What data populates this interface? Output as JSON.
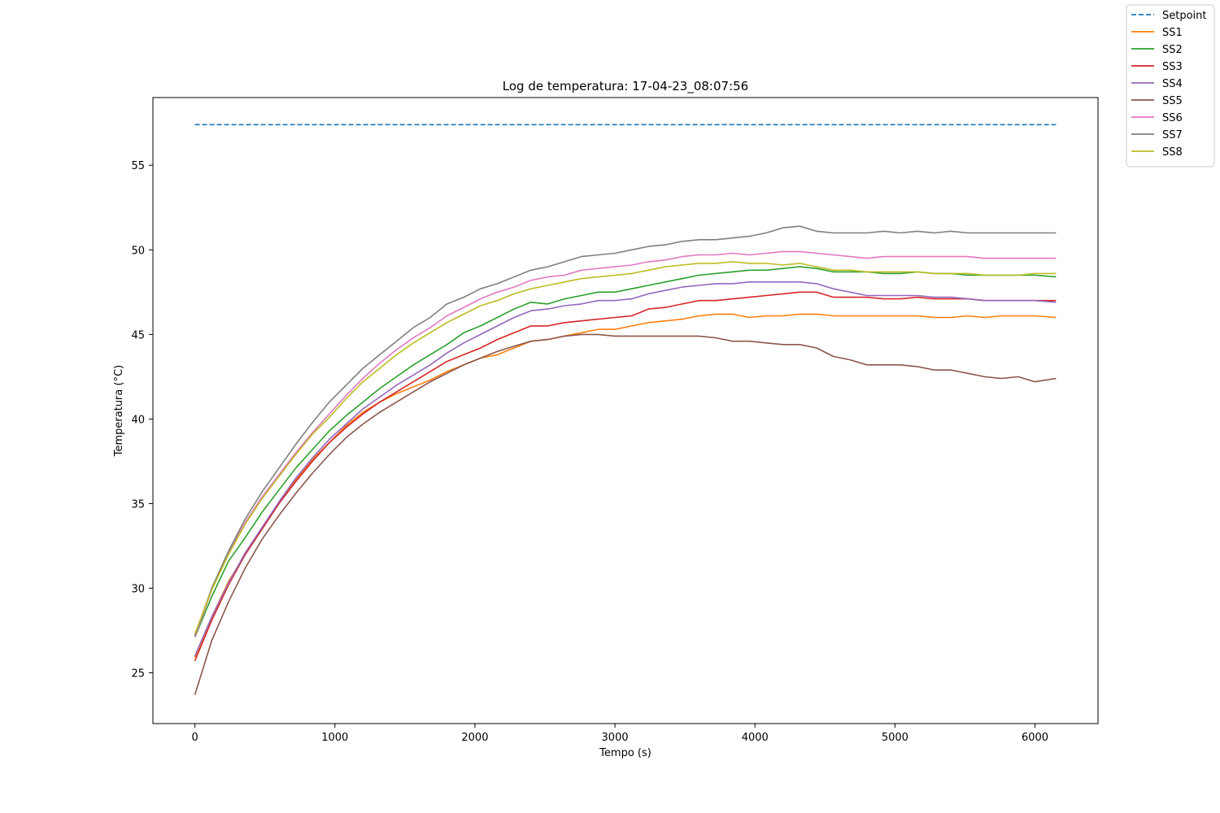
{
  "chart_data": {
    "type": "line",
    "title": "Log de temperatura: 17-04-23_08:07:56",
    "xlabel": "Tempo (s)",
    "ylabel": "Temperatura (°C)",
    "xlim": [
      -300,
      6450
    ],
    "ylim": [
      22,
      59
    ],
    "xticks": [
      0,
      1000,
      2000,
      3000,
      4000,
      5000,
      6000
    ],
    "yticks": [
      25,
      30,
      35,
      40,
      45,
      50,
      55
    ],
    "grid": false,
    "legend_position": "top-right",
    "x": [
      0,
      120,
      240,
      360,
      480,
      600,
      720,
      840,
      960,
      1080,
      1200,
      1320,
      1440,
      1560,
      1680,
      1800,
      1920,
      2040,
      2160,
      2280,
      2400,
      2520,
      2640,
      2760,
      2880,
      3000,
      3120,
      3240,
      3360,
      3480,
      3600,
      3720,
      3840,
      3960,
      4080,
      4200,
      4320,
      4440,
      4560,
      4680,
      4800,
      4920,
      5040,
      5160,
      5280,
      5400,
      5520,
      5640,
      5760,
      5880,
      6000,
      6150
    ],
    "series": [
      {
        "name": "Setpoint",
        "color": "#1f77b4",
        "dashed": true,
        "values": [
          57.4,
          57.4,
          57.4,
          57.4,
          57.4,
          57.4,
          57.4,
          57.4,
          57.4,
          57.4,
          57.4,
          57.4,
          57.4,
          57.4,
          57.4,
          57.4,
          57.4,
          57.4,
          57.4,
          57.4,
          57.4,
          57.4,
          57.4,
          57.4,
          57.4,
          57.4,
          57.4,
          57.4,
          57.4,
          57.4,
          57.4,
          57.4,
          57.4,
          57.4,
          57.4,
          57.4,
          57.4,
          57.4,
          57.4,
          57.4,
          57.4,
          57.4,
          57.4,
          57.4,
          57.4,
          57.4,
          57.4,
          57.4,
          57.4,
          57.4,
          57.4,
          57.4
        ]
      },
      {
        "name": "SS1",
        "color": "#ff7f0e",
        "values": [
          25.9,
          28.3,
          30.4,
          32.0,
          33.5,
          35.0,
          36.4,
          37.6,
          38.6,
          39.6,
          40.4,
          41.0,
          41.5,
          41.9,
          42.3,
          42.8,
          43.2,
          43.6,
          43.8,
          44.2,
          44.6,
          44.7,
          44.9,
          45.1,
          45.3,
          45.3,
          45.5,
          45.7,
          45.8,
          45.9,
          46.1,
          46.2,
          46.2,
          46.0,
          46.1,
          46.1,
          46.2,
          46.2,
          46.1,
          46.1,
          46.1,
          46.1,
          46.1,
          46.1,
          46.0,
          46.0,
          46.1,
          46.0,
          46.1,
          46.1,
          46.1,
          46.0
        ]
      },
      {
        "name": "SS2",
        "color": "#2ca02c",
        "values": [
          27.1,
          29.5,
          31.6,
          33.0,
          34.5,
          35.8,
          37.1,
          38.2,
          39.3,
          40.2,
          41.0,
          41.8,
          42.5,
          43.2,
          43.8,
          44.4,
          45.1,
          45.5,
          46.0,
          46.5,
          46.9,
          46.8,
          47.1,
          47.3,
          47.5,
          47.5,
          47.7,
          47.9,
          48.1,
          48.3,
          48.5,
          48.6,
          48.7,
          48.8,
          48.8,
          48.9,
          49.0,
          48.9,
          48.7,
          48.7,
          48.7,
          48.6,
          48.6,
          48.7,
          48.6,
          48.6,
          48.5,
          48.5,
          48.5,
          48.5,
          48.5,
          48.4
        ]
      },
      {
        "name": "SS3",
        "color": "#d62728",
        "values": [
          25.7,
          28.1,
          30.2,
          32.0,
          33.5,
          35.0,
          36.3,
          37.5,
          38.6,
          39.5,
          40.3,
          41.0,
          41.6,
          42.2,
          42.8,
          43.4,
          43.8,
          44.2,
          44.7,
          45.1,
          45.5,
          45.5,
          45.7,
          45.8,
          45.9,
          46.0,
          46.1,
          46.5,
          46.6,
          46.8,
          47.0,
          47.0,
          47.1,
          47.2,
          47.3,
          47.4,
          47.5,
          47.5,
          47.2,
          47.2,
          47.2,
          47.1,
          47.1,
          47.2,
          47.1,
          47.1,
          47.1,
          47.0,
          47.0,
          47.0,
          47.0,
          47.0
        ]
      },
      {
        "name": "SS4",
        "color": "#9467bd",
        "values": [
          26.0,
          28.3,
          30.3,
          32.1,
          33.6,
          35.1,
          36.5,
          37.7,
          38.8,
          39.7,
          40.6,
          41.3,
          42.0,
          42.6,
          43.2,
          43.9,
          44.5,
          45.0,
          45.5,
          46.0,
          46.4,
          46.5,
          46.7,
          46.8,
          47.0,
          47.0,
          47.1,
          47.4,
          47.6,
          47.8,
          47.9,
          48.0,
          48.0,
          48.1,
          48.1,
          48.1,
          48.1,
          48.0,
          47.7,
          47.5,
          47.3,
          47.3,
          47.3,
          47.3,
          47.2,
          47.2,
          47.1,
          47.0,
          47.0,
          47.0,
          47.0,
          46.9
        ]
      },
      {
        "name": "SS5",
        "color": "#8c564b",
        "values": [
          23.7,
          26.9,
          29.2,
          31.2,
          32.9,
          34.3,
          35.6,
          36.8,
          37.9,
          38.9,
          39.7,
          40.4,
          41.0,
          41.6,
          42.2,
          42.7,
          43.2,
          43.6,
          44.0,
          44.3,
          44.6,
          44.7,
          44.9,
          45.0,
          45.0,
          44.9,
          44.9,
          44.9,
          44.9,
          44.9,
          44.9,
          44.8,
          44.6,
          44.6,
          44.5,
          44.4,
          44.4,
          44.2,
          43.7,
          43.5,
          43.2,
          43.2,
          43.2,
          43.1,
          42.9,
          42.9,
          42.7,
          42.5,
          42.4,
          42.5,
          42.2,
          42.4
        ]
      },
      {
        "name": "SS6",
        "color": "#e377c2",
        "values": [
          27.1,
          29.9,
          32.1,
          33.9,
          35.4,
          36.7,
          38.0,
          39.2,
          40.3,
          41.4,
          42.4,
          43.3,
          44.1,
          44.8,
          45.4,
          46.1,
          46.6,
          47.1,
          47.5,
          47.8,
          48.2,
          48.4,
          48.5,
          48.8,
          48.9,
          49.0,
          49.1,
          49.3,
          49.4,
          49.6,
          49.7,
          49.7,
          49.8,
          49.7,
          49.8,
          49.9,
          49.9,
          49.8,
          49.7,
          49.6,
          49.5,
          49.6,
          49.6,
          49.6,
          49.6,
          49.6,
          49.6,
          49.5,
          49.5,
          49.5,
          49.5,
          49.5
        ]
      },
      {
        "name": "SS7",
        "color": "#7f7f7f",
        "values": [
          27.2,
          30.0,
          32.2,
          34.1,
          35.7,
          37.1,
          38.5,
          39.8,
          41.0,
          42.0,
          43.0,
          43.8,
          44.6,
          45.4,
          46.0,
          46.8,
          47.2,
          47.7,
          48.0,
          48.4,
          48.8,
          49.0,
          49.3,
          49.6,
          49.7,
          49.8,
          50.0,
          50.2,
          50.3,
          50.5,
          50.6,
          50.6,
          50.7,
          50.8,
          51.0,
          51.3,
          51.4,
          51.1,
          51.0,
          51.0,
          51.0,
          51.1,
          51.0,
          51.1,
          51.0,
          51.1,
          51.0,
          51.0,
          51.0,
          51.0,
          51.0,
          51.0
        ]
      },
      {
        "name": "SS8",
        "color": "#bcbd22",
        "values": [
          27.3,
          29.9,
          32.0,
          33.8,
          35.3,
          36.6,
          37.9,
          39.1,
          40.1,
          41.2,
          42.2,
          43.0,
          43.8,
          44.5,
          45.1,
          45.7,
          46.2,
          46.7,
          47.0,
          47.4,
          47.7,
          47.9,
          48.1,
          48.3,
          48.4,
          48.5,
          48.6,
          48.8,
          49.0,
          49.1,
          49.2,
          49.2,
          49.3,
          49.2,
          49.2,
          49.1,
          49.2,
          49.0,
          48.8,
          48.8,
          48.7,
          48.7,
          48.7,
          48.7,
          48.6,
          48.6,
          48.6,
          48.5,
          48.5,
          48.5,
          48.6,
          48.6
        ]
      }
    ]
  }
}
